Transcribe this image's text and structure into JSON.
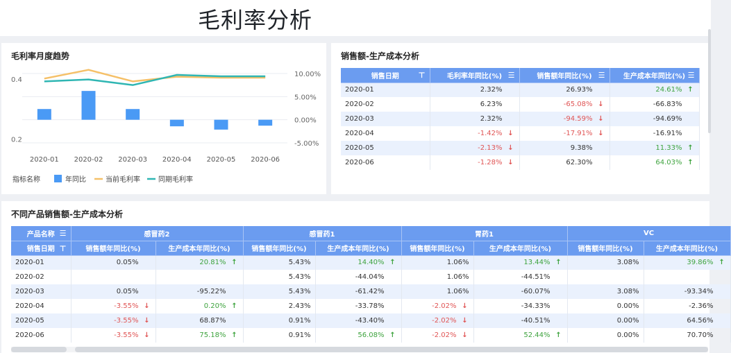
{
  "page_title": "毛利率分析",
  "panel1": {
    "title": "毛利率月度趋势",
    "legend": {
      "title": "指标名称",
      "items": [
        "年同比",
        "当前毛利率",
        "同期毛利率"
      ]
    },
    "left_ticks": [
      "0.4",
      "0.2"
    ],
    "right_ticks": [
      "10.00%",
      "5.00%",
      "0.00%",
      "-5.00%"
    ]
  },
  "chart_data": {
    "type": "bar",
    "title": "毛利率月度趋势",
    "categories": [
      "2020-01",
      "2020-02",
      "2020-03",
      "2020-04",
      "2020-05",
      "2020-06"
    ],
    "legend_title": "指标名称",
    "legend_position": "bottom-left",
    "right_axis": {
      "range": [
        -5,
        10
      ],
      "ticks": [
        "10.00%",
        "5.00%",
        "0.00%",
        "-5.00%"
      ]
    },
    "left_axis": {
      "ticks": [
        "0.4",
        "0.2"
      ]
    },
    "series": [
      {
        "name": "年同比",
        "kind": "bar",
        "color": "#4a9af5",
        "axis": "right",
        "values": [
          2.32,
          6.23,
          2.32,
          -1.42,
          -2.13,
          -1.28
        ]
      },
      {
        "name": "当前毛利率",
        "kind": "line",
        "color": "#f5c068",
        "axis": "right",
        "values": [
          8.9,
          10.8,
          8.3,
          9.3,
          9.1,
          9.1
        ]
      },
      {
        "name": "同期毛利率",
        "kind": "line",
        "color": "#2fb6b3",
        "axis": "right",
        "values": [
          8.3,
          8.7,
          7.5,
          9.7,
          9.4,
          9.4
        ]
      }
    ],
    "grid": true
  },
  "panel2": {
    "title": "销售额-生产成本分析",
    "headers": [
      "销售日期",
      "毛利率年同比(%)",
      "销售额年同比(%)",
      "生产成本年同比(%)"
    ],
    "rows": [
      {
        "date": "2020-01",
        "c1": "2.32%",
        "c2": "26.93%",
        "c3": "24.61%"
      },
      {
        "date": "2020-02",
        "c1": "6.23%",
        "c2": "-65.08%",
        "c3": "-66.83%"
      },
      {
        "date": "2020-03",
        "c1": "2.32%",
        "c2": "-94.59%",
        "c3": "-94.69%"
      },
      {
        "date": "2020-04",
        "c1": "-1.42%",
        "c2": "-17.91%",
        "c3": "-16.91%"
      },
      {
        "date": "2020-05",
        "c1": "-2.13%",
        "c2": "9.38%",
        "c3": "11.33%"
      },
      {
        "date": "2020-06",
        "c1": "-1.28%",
        "c2": "62.30%",
        "c3": "64.03%"
      }
    ]
  },
  "panel3": {
    "title": "不同产品销售额-生产成本分析",
    "product_header": "产品名称",
    "date_header": "销售日期",
    "products": [
      "感冒药2",
      "感冒药1",
      "胃药1",
      "VC"
    ],
    "sub_sales": "销售额年同比(%)",
    "sub_cost": "生产成本年同比(%)",
    "rows": [
      {
        "date": "2020-01",
        "v": [
          "0.05%",
          "20.81%",
          "5.43%",
          "14.40%",
          "1.06%",
          "13.44%",
          "3.08%",
          "39.86%"
        ]
      },
      {
        "date": "2020-02",
        "v": [
          "",
          "",
          "5.43%",
          "-44.04%",
          "1.06%",
          "-44.51%",
          "",
          ""
        ]
      },
      {
        "date": "2020-03",
        "v": [
          "0.05%",
          "-95.22%",
          "5.43%",
          "-61.42%",
          "1.06%",
          "-60.07%",
          "3.08%",
          "-93.34%"
        ]
      },
      {
        "date": "2020-04",
        "v": [
          "-3.55%",
          "0.20%",
          "2.43%",
          "-33.78%",
          "-2.02%",
          "-34.33%",
          "0.00%",
          "-2.36%"
        ]
      },
      {
        "date": "2020-05",
        "v": [
          "-3.55%",
          "68.87%",
          "0.91%",
          "-43.40%",
          "-2.02%",
          "-40.51%",
          "0.00%",
          "64.56%"
        ]
      },
      {
        "date": "2020-06",
        "v": [
          "-3.55%",
          "75.18%",
          "0.91%",
          "56.08%",
          "-2.02%",
          "52.44%",
          "0.00%",
          "70.70%"
        ]
      }
    ]
  },
  "colors": {
    "header_blue": "#6b9cf0",
    "row_alt": "#eaf1fd",
    "up_green": "#3ea33e",
    "down_red": "#e05454"
  }
}
